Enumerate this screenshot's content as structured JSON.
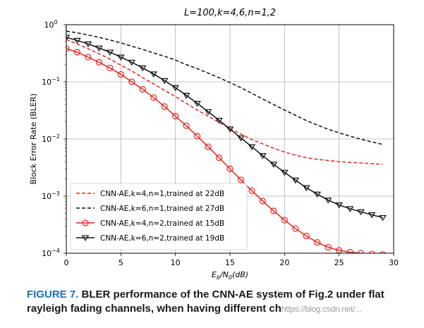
{
  "chart_data": {
    "type": "line",
    "title": "L=100,k=4,6,n=1,2",
    "xlabel": "E_b/N_0(dB)",
    "ylabel": "Block Error Rate (BLER)",
    "xlim": [
      0,
      30
    ],
    "ylim_log10": [
      -4,
      0
    ],
    "yscale": "log",
    "grid": true,
    "legend_position": "lower-left",
    "x_ticks": [
      0,
      5,
      10,
      15,
      20,
      25,
      30
    ],
    "y_ticks": [
      {
        "base": "10",
        "exp": "0"
      },
      {
        "base": "10",
        "exp": "−1"
      },
      {
        "base": "10",
        "exp": "−2"
      },
      {
        "base": "10",
        "exp": "−3"
      },
      {
        "base": "10",
        "exp": "−4"
      }
    ],
    "series": [
      {
        "name": "CNN-AE,k=4,n=1,trained at 22dB",
        "color": "#e8231e",
        "style": "dashed",
        "marker": "none",
        "x": [
          0,
          1,
          2,
          3,
          4,
          5,
          6,
          7,
          8,
          9,
          10,
          11,
          12,
          13,
          14,
          15,
          16,
          17,
          18,
          19,
          20,
          21,
          22,
          23,
          24,
          25,
          26,
          27,
          28,
          29
        ],
        "y": [
          0.55,
          0.46,
          0.38,
          0.31,
          0.25,
          0.195,
          0.155,
          0.118,
          0.092,
          0.071,
          0.055,
          0.042,
          0.032,
          0.025,
          0.0195,
          0.0152,
          0.0122,
          0.0098,
          0.0082,
          0.0069,
          0.0059,
          0.0052,
          0.0047,
          0.0044,
          0.0042,
          0.004,
          0.0039,
          0.0038,
          0.0037,
          0.0036
        ]
      },
      {
        "name": "CNN-AE,k=6,n=1,trained at 27dB",
        "color": "#111111",
        "style": "dashed",
        "marker": "none",
        "x": [
          0,
          1,
          2,
          3,
          4,
          5,
          6,
          7,
          8,
          9,
          10,
          11,
          12,
          13,
          14,
          15,
          16,
          17,
          18,
          19,
          20,
          21,
          22,
          23,
          24,
          25,
          26,
          27,
          28,
          29
        ],
        "y": [
          0.77,
          0.72,
          0.66,
          0.6,
          0.54,
          0.48,
          0.42,
          0.37,
          0.32,
          0.28,
          0.24,
          0.2,
          0.17,
          0.142,
          0.118,
          0.097,
          0.079,
          0.063,
          0.05,
          0.04,
          0.032,
          0.026,
          0.021,
          0.0175,
          0.0148,
          0.0128,
          0.0112,
          0.0099,
          0.0089,
          0.008
        ]
      },
      {
        "name": "CNN-AE,k=4,n=2,trained at 15dB",
        "color": "#e8231e",
        "style": "solid",
        "marker": "circle",
        "x": [
          0,
          1,
          2,
          3,
          4,
          5,
          6,
          7,
          8,
          9,
          10,
          11,
          12,
          13,
          14,
          15,
          16,
          17,
          18,
          19,
          20,
          21,
          22,
          23,
          24,
          25,
          26,
          27,
          28,
          29
        ],
        "y": [
          0.38,
          0.33,
          0.27,
          0.22,
          0.175,
          0.135,
          0.1,
          0.074,
          0.053,
          0.037,
          0.025,
          0.017,
          0.0112,
          0.0073,
          0.0047,
          0.003,
          0.00192,
          0.00124,
          0.00082,
          0.00055,
          0.00038,
          0.00027,
          0.0002,
          0.000155,
          0.000127,
          0.000112,
          0.000104,
          0.0001,
          9.7e-05,
          9.5e-05
        ]
      },
      {
        "name": "CNN-AE,k=6,n=2,trained at 19dB",
        "color": "#111111",
        "style": "solid",
        "marker": "triangle-down",
        "x": [
          0,
          1,
          2,
          3,
          4,
          5,
          6,
          7,
          8,
          9,
          10,
          11,
          12,
          13,
          14,
          15,
          16,
          17,
          18,
          19,
          20,
          21,
          22,
          23,
          24,
          25,
          26,
          27,
          28,
          29
        ],
        "y": [
          0.6,
          0.53,
          0.46,
          0.39,
          0.33,
          0.27,
          0.22,
          0.175,
          0.137,
          0.105,
          0.079,
          0.058,
          0.042,
          0.03,
          0.0212,
          0.0149,
          0.0104,
          0.0073,
          0.0051,
          0.0036,
          0.0026,
          0.0019,
          0.0014,
          0.00108,
          0.00085,
          0.0007,
          0.0006,
          0.00053,
          0.00047,
          0.00042
        ]
      }
    ]
  },
  "caption": {
    "figure_label": "FIGURE 7.",
    "text_line1": "BLER performance of the CNN-AE system of Fig.2 under flat",
    "text_line2": "rayleigh fading channels, when having different ch",
    "watermark": "https://blog.csdn.net/..."
  }
}
